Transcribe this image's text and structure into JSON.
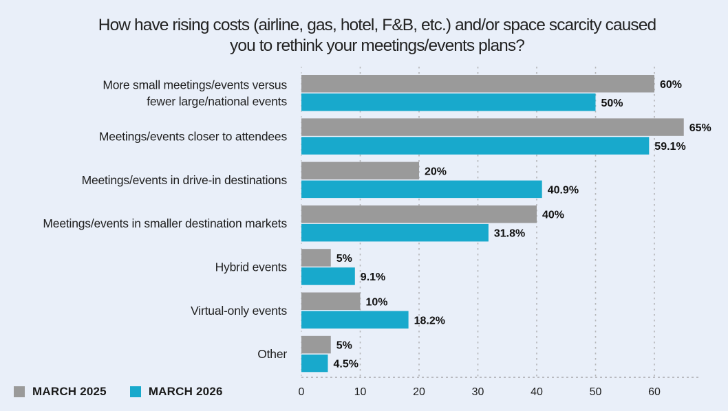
{
  "chart_data": {
    "type": "bar",
    "orientation": "horizontal",
    "title": "How have rising costs (airline, gas, hotel, F&B, etc.) and/or space scarcity caused you to rethink your meetings/events plans?",
    "title_lines": [
      "How have rising costs (airline, gas, hotel, F&B, etc.) and/or space scarcity caused",
      "you to rethink your meetings/events plans?"
    ],
    "categories": [
      [
        "More small meetings/events versus",
        "fewer large/national events"
      ],
      [
        "Meetings/events closer to attendees"
      ],
      [
        "Meetings/events in drive-in destinations"
      ],
      [
        "Meetings/events in smaller destination markets"
      ],
      [
        "Hybrid events"
      ],
      [
        "Virtual-only events"
      ],
      [
        "Other"
      ]
    ],
    "series": [
      {
        "name": "MARCH 2025",
        "color": "#9a9a9a",
        "values": [
          60,
          65,
          20,
          40,
          5,
          10,
          5
        ],
        "labels": [
          "60%",
          "65%",
          "20%",
          "40%",
          "5%",
          "10%",
          "5%"
        ]
      },
      {
        "name": "MARCH 2026",
        "color": "#18a9cc",
        "values": [
          50,
          59.1,
          40.9,
          31.8,
          9.1,
          18.2,
          4.5
        ],
        "labels": [
          "50%",
          "59.1%",
          "40.9%",
          "31.8%",
          "9.1%",
          "18.2%",
          "4.5%"
        ]
      }
    ],
    "xlabel": "",
    "ylabel": "",
    "xlim": [
      0,
      68
    ],
    "xticks": [
      0,
      10,
      20,
      30,
      40,
      50,
      60
    ],
    "grid": "vertical dotted",
    "legend": "bottom-left"
  }
}
